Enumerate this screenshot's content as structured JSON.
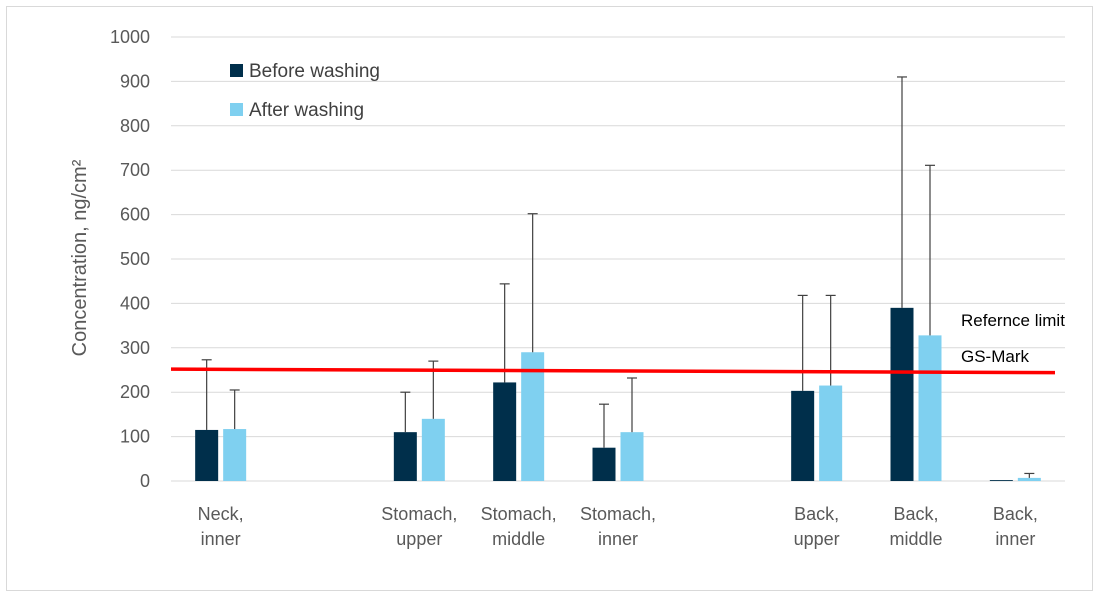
{
  "chart_data": {
    "type": "bar",
    "ylabel": "Concentration, ng/cm²",
    "ylim": [
      0,
      1000
    ],
    "yticks": [
      0,
      100,
      200,
      300,
      400,
      500,
      600,
      700,
      800,
      900,
      1000
    ],
    "grid": true,
    "legend_position": "top-left",
    "categories": [
      [
        "Neck,",
        "inner"
      ],
      [
        "",
        ""
      ],
      [
        "Stomach,",
        "upper"
      ],
      [
        "Stomach,",
        "middle"
      ],
      [
        "Stomach,",
        "inner"
      ],
      [
        "",
        ""
      ],
      [
        "Back,",
        "upper"
      ],
      [
        "Back,",
        "middle"
      ],
      [
        "Back,",
        "inner"
      ]
    ],
    "series": [
      {
        "name": "Before washing",
        "color": "#002f4b",
        "values": [
          115,
          null,
          110,
          222,
          75,
          null,
          203,
          390,
          2
        ],
        "error_plus": [
          158,
          null,
          90,
          222,
          98,
          null,
          215,
          520,
          0
        ]
      },
      {
        "name": "After washing",
        "color": "#7fd0f0",
        "values": [
          117,
          null,
          140,
          290,
          110,
          null,
          215,
          328,
          7
        ],
        "error_plus": [
          88,
          null,
          130,
          312,
          122,
          null,
          203,
          383,
          10
        ]
      }
    ],
    "reference_line": {
      "value_start": 252,
      "value_end": 244,
      "color": "#ff0000"
    },
    "annotations": [
      "Refernce limit",
      "GS-Mark"
    ]
  }
}
